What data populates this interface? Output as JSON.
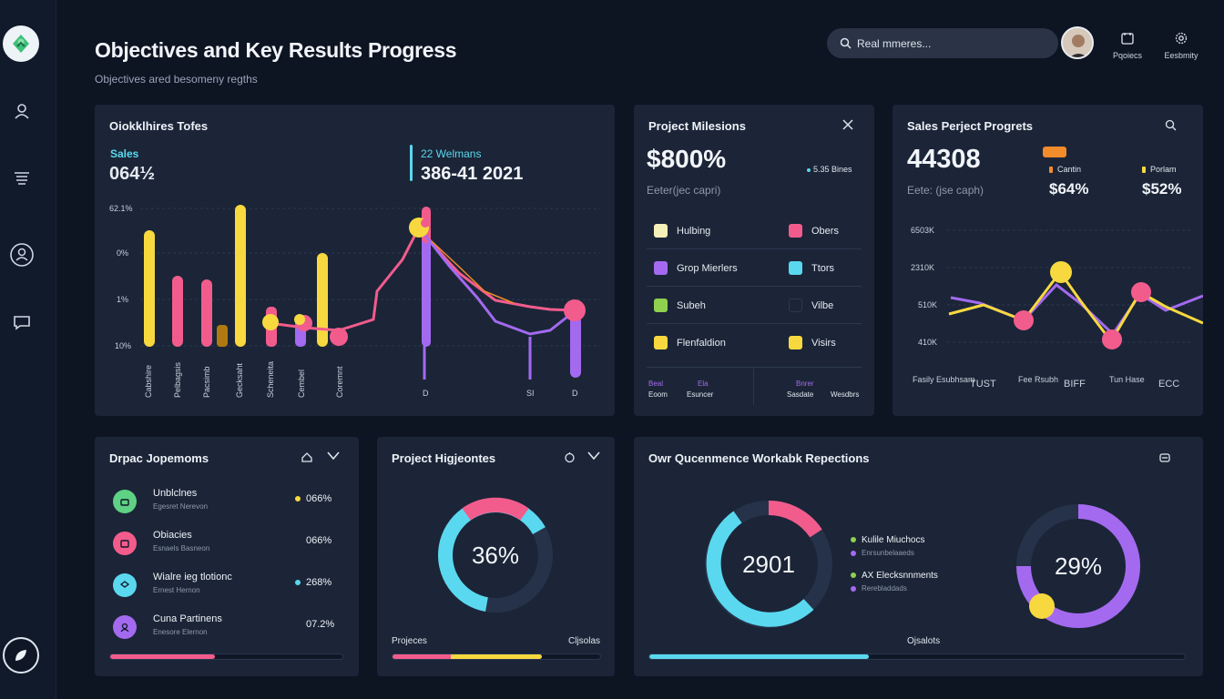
{
  "header": {
    "title": "Objectives and Key Results Progress",
    "subtitle": "Objectives ared besomeny regths",
    "search_placeholder": "Real mmeres...",
    "btn_projects": "Pqoiecs",
    "btn_settings": "Eesbmity"
  },
  "colors": {
    "yellow": "#f7d93f",
    "pink": "#f25c8d",
    "purple": "#a36af0",
    "cyan": "#5ad8ef",
    "green": "#5fd184",
    "orange": "#f28b2a"
  },
  "card_okr_tiles": {
    "title": "Oiokklhires Tofes",
    "metric1_label": "Sales",
    "metric1_value": "064½",
    "metric2_label": "22 Welmans",
    "metric2_value": "386-41 2021",
    "y_ticks": [
      "62.1%",
      "0%",
      "1%",
      "10%"
    ],
    "x_labels": [
      "Cabshire",
      "Pelbagsis",
      "Pacsimb",
      "Gecksaht",
      "Scheneita",
      "Cembel",
      "Coremnt",
      "D",
      "SI",
      "D"
    ]
  },
  "card_milestones": {
    "title": "Project Milesions",
    "value": "$800%",
    "badge": "5.35 Bines",
    "subtext": "Eeter(jec capri)",
    "legend": [
      {
        "label": "Hulbing",
        "color": "#f5efb8"
      },
      {
        "label": "Obers",
        "color": "#f25c8d"
      },
      {
        "label": "Grop Mierlers",
        "color": "#a36af0"
      },
      {
        "label": "Ttors",
        "color": "#5ad8ef"
      },
      {
        "label": "Subeh",
        "color": "#8fd14f"
      },
      {
        "label": "Vilbe",
        "color": "#1b2537"
      },
      {
        "label": "Flenfaldion",
        "color": "#f7d93f"
      },
      {
        "label": "Visirs",
        "color": "#f7d93f"
      }
    ],
    "footer": [
      "Beal",
      "Eoom",
      "Ela",
      "Esuncer",
      "Bnrer",
      "Sasdate",
      "Wesdbrs"
    ]
  },
  "card_sales": {
    "title": "Sales Perject Progrets",
    "value": "44308",
    "subtext": "Eete: (jse caph)",
    "stat1_label": "Cantin",
    "stat1_value": "$64%",
    "stat2_label": "Porlam",
    "stat2_value": "$52%",
    "y_ticks": [
      "6503K",
      "2310K",
      "510K",
      "410K"
    ],
    "x_labels": [
      "Fasily Esubhsam",
      "TUST",
      "Fee Rsubh",
      "BIFF",
      "Tun Hase",
      "ECC"
    ]
  },
  "card_departments": {
    "title": "Drpac Jopemoms",
    "items": [
      {
        "name": "Unblclnes",
        "sub": "Egesret Nerevon",
        "value": "066%",
        "circle": "#5fd184",
        "dot": "#f7d93f"
      },
      {
        "name": "Obiacies",
        "sub": "Esnaels Basneon",
        "value": "066%",
        "circle": "#f25c8d",
        "dot": ""
      },
      {
        "name": "Wialre ieg tlotionc",
        "sub": "Ernest Hernon",
        "value": "268%",
        "circle": "#5ad8ef",
        "dot": "#5ad8ef"
      },
      {
        "name": "Cuna Partinens",
        "sub": "Enesore Elernon",
        "value": "07.2%",
        "circle": "#a36af0",
        "dot": ""
      }
    ],
    "progress": 0.45
  },
  "card_project_objectives": {
    "title": "Project Higjeontes",
    "center": "36%",
    "label_left": "Projeces",
    "label_right": "Cljsolas",
    "donut_cyan": 0.36,
    "progress_pink": 0.28,
    "progress_yellow": 0.72
  },
  "card_workstream": {
    "title": "Owr Qucenmence Workabk Repections",
    "donut1_center": "2901",
    "donut2_center": "29%",
    "legend": [
      {
        "label": "Kulile Miuchocs",
        "sub": "Enrsunbelaaeds",
        "color": "#8fd14f"
      },
      {
        "label": "AX Elecksnnments",
        "sub": "Rerebladdads",
        "color": "#8fd14f"
      }
    ],
    "footer_label": "Ojsalots",
    "progress": 0.41
  }
}
